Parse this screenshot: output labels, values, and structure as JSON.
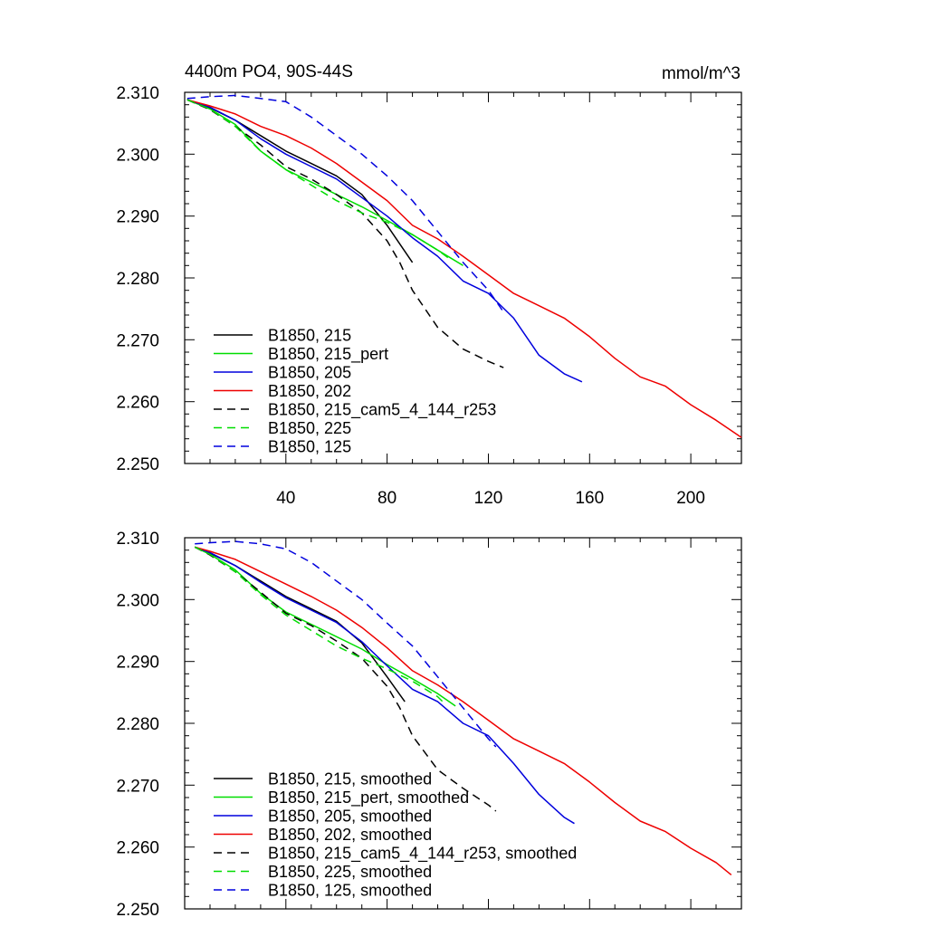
{
  "page": {
    "title": "4400m PO4, 90S-44S",
    "units": "mmol/m^3"
  },
  "chart_data": [
    {
      "type": "line",
      "title": "4400m PO4, 90S-44S",
      "units_label": "mmol/m^3",
      "xlim": [
        0,
        220
      ],
      "ylim": [
        2.25,
        2.31
      ],
      "x_ticks": [
        40,
        80,
        120,
        160,
        200
      ],
      "y_ticks": [
        2.25,
        2.26,
        2.27,
        2.28,
        2.29,
        2.3,
        2.31
      ],
      "y_tick_labels": [
        "2.250",
        "2.260",
        "2.270",
        "2.280",
        "2.290",
        "2.300",
        "2.310"
      ],
      "legend_position": "bottom-left",
      "series": [
        {
          "name": "B1850, 215",
          "color": "#000000",
          "dash": "solid",
          "x": [
            1,
            10,
            20,
            30,
            40,
            50,
            60,
            70,
            80,
            85,
            90
          ],
          "y": [
            2.3088,
            2.3075,
            2.3055,
            2.303,
            2.3005,
            2.2985,
            2.2965,
            2.2935,
            2.2885,
            2.2855,
            2.2825
          ]
        },
        {
          "name": "B1850, 215_pert",
          "color": "#00dd00",
          "dash": "solid",
          "x": [
            1,
            10,
            20,
            30,
            40,
            50,
            60,
            70,
            80,
            90,
            100,
            110
          ],
          "y": [
            2.3088,
            2.3073,
            2.3048,
            2.3005,
            2.2975,
            2.2955,
            2.2935,
            2.2915,
            2.2893,
            2.287,
            2.2845,
            2.282
          ]
        },
        {
          "name": "B1850, 205",
          "color": "#0000dd",
          "dash": "solid",
          "x": [
            1,
            10,
            20,
            30,
            40,
            50,
            60,
            70,
            80,
            90,
            100,
            110,
            120,
            130,
            140,
            150,
            157
          ],
          "y": [
            2.3088,
            2.3076,
            2.3055,
            2.3025,
            2.3,
            2.298,
            2.296,
            2.293,
            2.29,
            2.2865,
            2.2835,
            2.2795,
            2.2775,
            2.2735,
            2.2675,
            2.2645,
            2.2632
          ]
        },
        {
          "name": "B1850, 202",
          "color": "#ee0000",
          "dash": "solid",
          "x": [
            1,
            10,
            20,
            30,
            40,
            50,
            60,
            70,
            80,
            90,
            100,
            110,
            120,
            130,
            140,
            150,
            160,
            170,
            180,
            190,
            200,
            210,
            220
          ],
          "y": [
            2.3088,
            2.3078,
            2.3065,
            2.3045,
            2.303,
            2.301,
            2.2985,
            2.2955,
            2.2925,
            2.2885,
            2.2863,
            2.2835,
            2.2805,
            2.2775,
            2.2755,
            2.2735,
            2.2705,
            2.267,
            2.264,
            2.2625,
            2.2595,
            2.257,
            2.2542
          ]
        },
        {
          "name": "B1850, 215_cam5_4_144_r253",
          "color": "#000000",
          "dash": "dashed",
          "x": [
            1,
            10,
            20,
            30,
            40,
            50,
            60,
            70,
            80,
            85,
            90,
            100,
            110,
            120,
            126
          ],
          "y": [
            2.3088,
            2.3072,
            2.3045,
            2.3015,
            2.298,
            2.296,
            2.2935,
            2.2905,
            2.286,
            2.2825,
            2.278,
            2.272,
            2.2685,
            2.2665,
            2.2655
          ]
        },
        {
          "name": "B1850, 225",
          "color": "#00dd00",
          "dash": "dashed",
          "x": [
            1,
            10,
            20,
            30,
            40,
            50,
            60,
            70,
            80,
            90,
            100,
            105
          ],
          "y": [
            2.3088,
            2.3073,
            2.3045,
            2.3005,
            2.2975,
            2.295,
            2.2925,
            2.2905,
            2.289,
            2.287,
            2.2845,
            2.283
          ]
        },
        {
          "name": "B1850, 125",
          "color": "#0000dd",
          "dash": "dashed",
          "x": [
            1,
            10,
            20,
            30,
            40,
            50,
            60,
            70,
            80,
            90,
            100,
            110,
            120,
            126
          ],
          "y": [
            2.309,
            2.3093,
            2.3095,
            2.309,
            2.3085,
            2.306,
            2.303,
            2.3,
            2.2965,
            2.2925,
            2.2875,
            2.2825,
            2.278,
            2.2745
          ]
        }
      ]
    },
    {
      "type": "line",
      "xlim": [
        0,
        220
      ],
      "ylim": [
        2.25,
        2.31
      ],
      "x_ticks": [
        40,
        80,
        120,
        160,
        200
      ],
      "y_ticks": [
        2.25,
        2.26,
        2.27,
        2.28,
        2.29,
        2.3,
        2.31
      ],
      "y_tick_labels": [
        "2.250",
        "2.260",
        "2.270",
        "2.280",
        "2.290",
        "2.300",
        "2.310"
      ],
      "legend_position": "bottom-left",
      "series": [
        {
          "name": "B1850, 215, smoothed",
          "color": "#000000",
          "dash": "solid",
          "x": [
            4,
            10,
            20,
            30,
            40,
            50,
            60,
            70,
            80,
            87
          ],
          "y": [
            2.3085,
            2.3075,
            2.3055,
            2.303,
            2.3005,
            2.2985,
            2.2965,
            2.293,
            2.2875,
            2.2835
          ]
        },
        {
          "name": "B1850, 215_pert, smoothed",
          "color": "#00dd00",
          "dash": "solid",
          "x": [
            4,
            10,
            20,
            30,
            40,
            50,
            60,
            70,
            80,
            90,
            100,
            107
          ],
          "y": [
            2.3085,
            2.3073,
            2.3048,
            2.301,
            2.298,
            2.296,
            2.294,
            2.292,
            2.2895,
            2.2872,
            2.2848,
            2.2828
          ]
        },
        {
          "name": "B1850, 205, smoothed",
          "color": "#0000dd",
          "dash": "solid",
          "x": [
            4,
            10,
            20,
            30,
            40,
            50,
            60,
            70,
            80,
            90,
            100,
            110,
            120,
            130,
            140,
            150,
            154
          ],
          "y": [
            2.3085,
            2.3076,
            2.3055,
            2.3028,
            2.3003,
            2.2983,
            2.2963,
            2.2932,
            2.2893,
            2.2855,
            2.2835,
            2.28,
            2.278,
            2.2735,
            2.2685,
            2.2648,
            2.2638
          ]
        },
        {
          "name": "B1850, 202, smoothed",
          "color": "#ee0000",
          "dash": "solid",
          "x": [
            4,
            10,
            20,
            30,
            40,
            50,
            60,
            70,
            80,
            90,
            100,
            110,
            120,
            130,
            140,
            150,
            160,
            170,
            180,
            190,
            200,
            210,
            216
          ],
          "y": [
            2.3085,
            2.3078,
            2.3065,
            2.3045,
            2.3025,
            2.3005,
            2.2983,
            2.2955,
            2.2922,
            2.2885,
            2.2862,
            2.2835,
            2.2805,
            2.2775,
            2.2755,
            2.2735,
            2.2705,
            2.2672,
            2.2642,
            2.2625,
            2.2598,
            2.2575,
            2.2555
          ]
        },
        {
          "name": "B1850, 215_cam5_4_144_r253, smoothed",
          "color": "#000000",
          "dash": "dashed",
          "x": [
            4,
            10,
            20,
            30,
            40,
            50,
            60,
            70,
            80,
            85,
            90,
            100,
            110,
            120,
            123
          ],
          "y": [
            2.3085,
            2.3072,
            2.3045,
            2.3012,
            2.2978,
            2.2958,
            2.2933,
            2.2905,
            2.286,
            2.2825,
            2.278,
            2.2725,
            2.2695,
            2.2668,
            2.2658
          ]
        },
        {
          "name": "B1850, 225, smoothed",
          "color": "#00dd00",
          "dash": "dashed",
          "x": [
            4,
            10,
            20,
            30,
            40,
            50,
            60,
            70,
            80,
            90,
            100,
            102
          ],
          "y": [
            2.3085,
            2.3073,
            2.3045,
            2.3008,
            2.2975,
            2.295,
            2.2925,
            2.2905,
            2.2888,
            2.2868,
            2.2843,
            2.2835
          ]
        },
        {
          "name": "B1850, 125, smoothed",
          "color": "#0000dd",
          "dash": "dashed",
          "x": [
            4,
            10,
            20,
            30,
            40,
            50,
            60,
            70,
            80,
            90,
            100,
            110,
            120,
            123
          ],
          "y": [
            2.309,
            2.3092,
            2.3094,
            2.309,
            2.3082,
            2.306,
            2.303,
            2.3,
            2.2962,
            2.2925,
            2.2875,
            2.2825,
            2.2775,
            2.2762
          ]
        }
      ]
    }
  ]
}
